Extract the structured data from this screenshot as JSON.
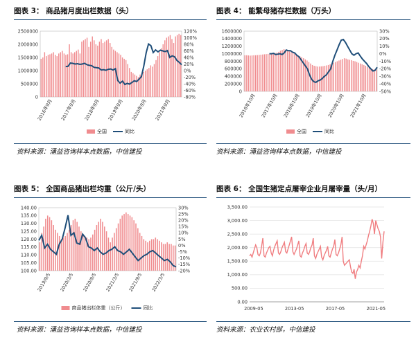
{
  "panels": [
    {
      "title": "图表 3：   商品猪月度出栏数据（头）",
      "source": "资料来源：涌益咨询样本点数据，中信建投"
    },
    {
      "title": "图表 4：   能繁母猪存栏数据（万头）",
      "source": "资料来源：涌益咨询样本点数据，中信建投"
    },
    {
      "title": "图表 5：   全国商品猪出栏均重（公斤/头）",
      "source": "资料来源：涌益咨询样本点数据，中信建投"
    },
    {
      "title": "图表 6：   全国生猪定点屠宰企业月屠宰量（头/月）",
      "source": "资料来源：农业农村部，中信建投"
    }
  ],
  "colors": {
    "bar": "#f08c8f",
    "line": "#1f4e79",
    "line6": "#f07d80",
    "rule": "#1f4e79"
  },
  "chart_data": [
    {
      "type": "bar",
      "legend": [
        "全国",
        "同比"
      ],
      "legend_position": "bottom",
      "x_ticks": [
        "2016年9月",
        "2017年9月",
        "2018年9月",
        "2019年9月",
        "2020年9月",
        "2021年9月"
      ],
      "y_left": {
        "ticks": [
          "0",
          "500000",
          "1000000",
          "1500000",
          "2000000",
          "2500000"
        ],
        "range": [
          0,
          2500000
        ]
      },
      "y_right": {
        "ticks": [
          "-80%",
          "-60%",
          "-40%",
          "-20%",
          "0%",
          "20%",
          "40%",
          "60%",
          "80%",
          "100%",
          "120%"
        ],
        "range": [
          -80,
          120
        ]
      },
      "series": [
        {
          "name": "全国",
          "type": "bar",
          "values": [
            1450000,
            1500000,
            1700000,
            1550000,
            1600000,
            1620000,
            1650000,
            1700000,
            1600000,
            1550000,
            1650000,
            1700000,
            1750000,
            1650000,
            1600000,
            1620000,
            2000000,
            1700000,
            1650000,
            1700000,
            1750000,
            1800000,
            1650000,
            2100000,
            2150000,
            2200000,
            2250000,
            1900000,
            2100000,
            2300000,
            2150000,
            2000000,
            1950000,
            2100000,
            2200000,
            2050000,
            2100000,
            2150000,
            2200000,
            2050000,
            1900000,
            1800000,
            1750000,
            1700000,
            1650000,
            1600000,
            1500000,
            1450000,
            1400000,
            1250000,
            1100000,
            950000,
            900000,
            850000,
            800000,
            750000,
            850000,
            900000,
            950000,
            1000000,
            1050000,
            1100000,
            1200000,
            1150000,
            1250000,
            1400000,
            1550000,
            1700000,
            1850000,
            2000000,
            2150000,
            2250000,
            2300000,
            2350000,
            2200000,
            2050000,
            2300000,
            2350000,
            2400000,
            2350000
          ]
        },
        {
          "name": "同比",
          "type": "line",
          "values": [
            12,
            13,
            23,
            22,
            20,
            21,
            19,
            20,
            22,
            18,
            16,
            15,
            10,
            9,
            8,
            2,
            3,
            1,
            4,
            5,
            2,
            6,
            -30,
            -38,
            -32,
            -42,
            -39,
            -41,
            -36,
            -31,
            -33,
            -26,
            -18,
            14,
            54,
            81,
            76,
            55,
            63,
            57,
            62,
            60,
            58,
            61,
            40,
            45,
            42,
            31,
            25,
            18
          ]
        }
      ]
    },
    {
      "type": "bar",
      "legend": [
        "全国",
        "同比"
      ],
      "legend_position": "bottom",
      "x_ticks": [
        "2016年10月",
        "2017年10月",
        "2018年10月",
        "2019年10月",
        "2020年10月",
        "2021年10月"
      ],
      "y_left": {
        "ticks": [
          "0",
          "200000",
          "400000",
          "600000",
          "800000",
          "1000000",
          "1200000",
          "1400000",
          "1600000"
        ],
        "range": [
          0,
          1600000
        ]
      },
      "y_right": {
        "ticks": [
          "-50%",
          "-40%",
          "-30%",
          "-20%",
          "-10%",
          "0%",
          "10%",
          "20%",
          "30%"
        ],
        "range": [
          -50,
          30
        ]
      },
      "series": [
        {
          "name": "全国",
          "type": "bar",
          "values": [
            960000,
            960000,
            955000,
            950000,
            955000,
            960000,
            960000,
            965000,
            970000,
            975000,
            980000,
            985000,
            990000,
            995000,
            1000000,
            1005000,
            1010000,
            1020000,
            1030000,
            1050000,
            1080000,
            1100000,
            1120000,
            1100000,
            1080000,
            1060000,
            1040000,
            1020000,
            1000000,
            980000,
            950000,
            930000,
            910000,
            880000,
            850000,
            820000,
            780000,
            740000,
            700000,
            680000,
            670000,
            660000,
            660000,
            665000,
            670000,
            680000,
            690000,
            700000,
            720000,
            740000,
            760000,
            780000,
            800000,
            820000,
            840000,
            860000,
            880000,
            870000,
            850000,
            840000,
            830000,
            810000,
            800000,
            780000,
            760000,
            740000,
            720000,
            700000,
            680000,
            650000,
            620000,
            600000,
            590000,
            580000,
            580000
          ]
        },
        {
          "name": "同比",
          "type": "line",
          "values": [
            0,
            0,
            0.5,
            -1,
            -0.5,
            0,
            -1,
            1,
            5,
            4,
            4,
            2,
            1,
            -2,
            -4,
            -8,
            -12,
            -16,
            -20,
            -28,
            -34,
            -37,
            -38,
            -36,
            -35,
            -33,
            -30,
            -28,
            -24,
            -20,
            -10,
            -2,
            5,
            12,
            18,
            19,
            15,
            10,
            5,
            0,
            -2,
            0,
            1,
            -3,
            -7,
            -10,
            -13,
            -17,
            -20,
            -23,
            -22,
            -18
          ]
        }
      ]
    },
    {
      "type": "bar",
      "legend": [
        "商品猪出栏体重（公斤）",
        "同比"
      ],
      "legend_position": "bottom",
      "x_ticks": [
        "2019/9/5",
        "2020/3/5",
        "2020/9/5",
        "2021/3/5",
        "2021/9/5",
        "2022/3/5"
      ],
      "y_left": {
        "ticks": [
          "100.00",
          "105.00",
          "110.00",
          "115.00",
          "120.00",
          "125.00",
          "130.00",
          "135.00",
          "140.00"
        ],
        "range": [
          100,
          140
        ]
      },
      "y_right": {
        "ticks": [
          "-20%",
          "-15%",
          "-10%",
          "-5%",
          "0%",
          "5%",
          "10%",
          "15%",
          "20%",
          "25%",
          "30%"
        ],
        "range": [
          -20,
          30
        ]
      },
      "series": [
        {
          "name": "商品猪出栏体重（公斤）",
          "type": "bar",
          "values": [
            118,
            124,
            128,
            133,
            135,
            134,
            132,
            129,
            126,
            124,
            122,
            120,
            121,
            122,
            124,
            126,
            129,
            132,
            133,
            131,
            128,
            125,
            123,
            122,
            121,
            120,
            121,
            123,
            126,
            129,
            131,
            133,
            131,
            128,
            125,
            121,
            118,
            121,
            124,
            127,
            130,
            133,
            135,
            136,
            137,
            136,
            135,
            134,
            132,
            130,
            127,
            124,
            122,
            120,
            119,
            118,
            119,
            120,
            120,
            121,
            120,
            119,
            118,
            117,
            117,
            118,
            117,
            117,
            116,
            116
          ]
        },
        {
          "name": "同比",
          "type": "line",
          "values": [
            4,
            8,
            -2,
            1,
            -3,
            -5,
            -7,
            1,
            5,
            14,
            24,
            8,
            10,
            2,
            1,
            9,
            6,
            -1,
            -2,
            -4,
            -2,
            -5,
            -7,
            -6,
            -4,
            -3,
            -1,
            -4,
            -5,
            -7,
            -5,
            -3,
            -6,
            -9,
            -12,
            -10,
            -8,
            -7,
            -5,
            -4,
            -6,
            -8,
            -10,
            -12,
            -11,
            -13,
            -16,
            -17
          ]
        }
      ]
    },
    {
      "type": "line",
      "x_ticks": [
        "2009-05",
        "2013-05",
        "2017-05",
        "2021-05"
      ],
      "y_left": {
        "ticks": [
          "0.00",
          "500.00",
          "1,000.00",
          "1,500.00",
          "2,000.00",
          "2,500.00",
          "3,000.00",
          "3,500.00"
        ],
        "range": [
          0,
          3500
        ]
      },
      "series": [
        {
          "name": "",
          "type": "line",
          "values": [
            1700,
            1750,
            1650,
            1800,
            1950,
            2100,
            2000,
            1750,
            1700,
            1800,
            2050,
            2350,
            1700,
            1650,
            1800,
            1900,
            2000,
            2050,
            1800,
            1700,
            1900,
            2050,
            2150,
            2250,
            1800,
            1750,
            1850,
            2000,
            2100,
            2200,
            1850,
            1800,
            1950,
            2100,
            2250,
            2400,
            1850,
            1750,
            1850,
            1950,
            2100,
            2250,
            1700,
            1650,
            1800,
            1900,
            2050,
            2150,
            1800,
            1750,
            1850,
            2000,
            2100,
            2350,
            1700,
            1600,
            1750,
            1850,
            1950,
            2050,
            1650,
            1550,
            1700,
            1800,
            1900,
            2050,
            1700,
            1650,
            1800,
            1950,
            2050,
            2300,
            1750,
            1700,
            1800,
            1950,
            2100,
            2400,
            1500,
            1350,
            1400,
            1450,
            1500,
            1550,
            1300,
            1100,
            1050,
            1200,
            850,
            1100,
            1200,
            1350,
            1250,
            1500,
            1700,
            2050,
            1950,
            2100,
            2250,
            2450,
            2600,
            2800,
            3050,
            2900,
            2500,
            3000,
            2850,
            2700,
            2600,
            2400,
            1600,
            2200,
            2600
          ]
        }
      ]
    }
  ]
}
